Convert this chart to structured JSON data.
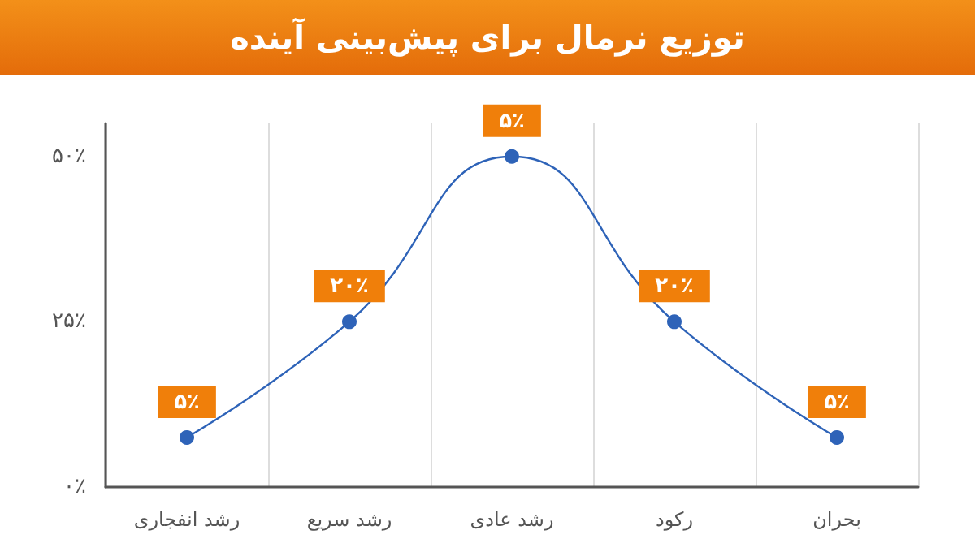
{
  "chart_data": {
    "type": "line",
    "title": "توزیع نرمال برای پیش‌بینی آینده",
    "categories": [
      "رشد انفجاری",
      "رشد سریع",
      "رشد عادی",
      "رکود",
      "بحران"
    ],
    "values": [
      7.5,
      25,
      50,
      25,
      7.5
    ],
    "annotations": [
      {
        "text": "۵٪",
        "x": "رشد انفجاری",
        "y": 7.5
      },
      {
        "text": "۲۰٪",
        "x": "رشد سریع",
        "y": 25
      },
      {
        "text": "۵٪",
        "x": "رشد عادی",
        "y": 50
      },
      {
        "text": "۲۰٪",
        "x": "رکود",
        "y": 25
      },
      {
        "text": "۵٪",
        "x": "بحران",
        "y": 7.5
      }
    ],
    "color": "#2e63b8",
    "ylim": [
      0,
      55
    ],
    "yticks": [
      {
        "value": 0,
        "label": "۰٪"
      },
      {
        "value": 25,
        "label": "۲۵٪"
      },
      {
        "value": 50,
        "label": "۵۰٪"
      }
    ],
    "grid": "x",
    "marker": "circle",
    "line_style": "solid"
  }
}
